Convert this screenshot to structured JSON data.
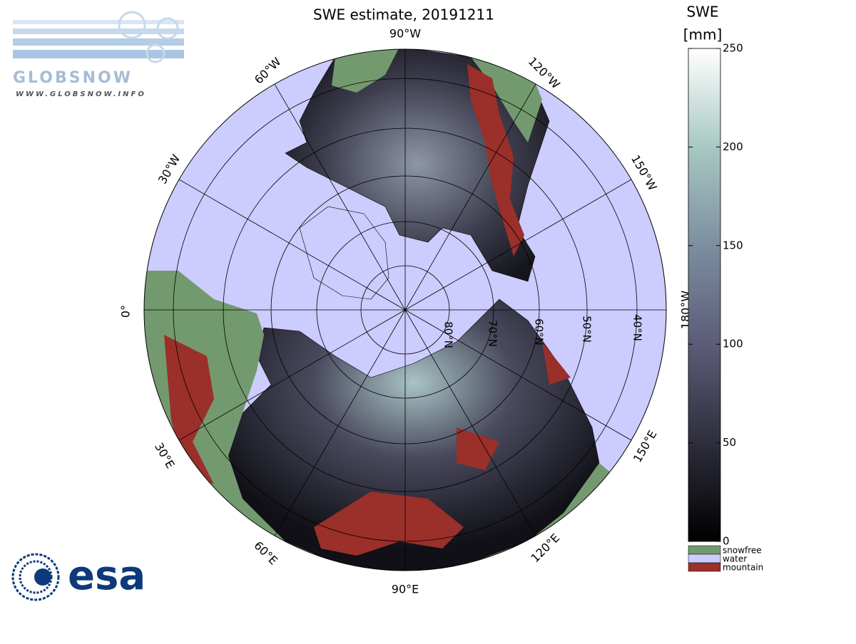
{
  "header": {
    "title": "SWE estimate, 20191211"
  },
  "logos": {
    "globsnow": "GLOBSNOW",
    "url": "WWW.GLOBSNOW.INFO",
    "esa": "esa"
  },
  "map": {
    "longitude_labels": [
      "90°W",
      "120°W",
      "150°W",
      "180°W",
      "150°E",
      "120°E",
      "90°E",
      "60°E",
      "30°E",
      "0°",
      "30°W",
      "60°W"
    ],
    "latitude_labels": [
      "80°N",
      "70°N",
      "60°N",
      "50°N",
      "40°N"
    ]
  },
  "colorbar": {
    "title": "SWE",
    "unit": "[mm]",
    "range": [
      0,
      250
    ],
    "ticks": [
      0,
      50,
      100,
      150,
      200,
      250
    ]
  },
  "legend": [
    {
      "label": "snowfree",
      "color": "#739a6e"
    },
    {
      "label": "water",
      "color": "#ccccff"
    },
    {
      "label": "mountain",
      "color": "#9b2f2a"
    }
  ]
}
